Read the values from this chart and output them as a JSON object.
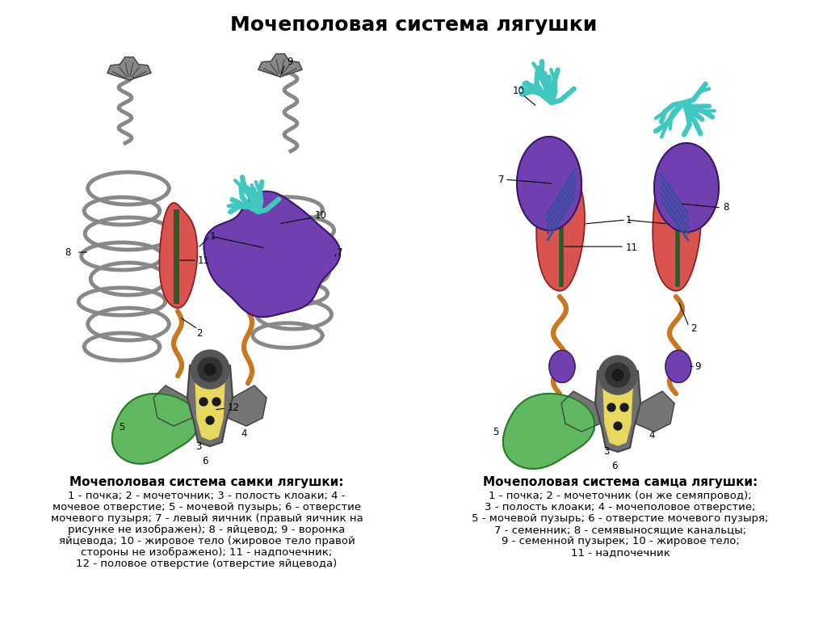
{
  "title": "Мочеполовая система лягушки",
  "title_fontsize": 18,
  "title_fontweight": "bold",
  "background_color": "#ffffff",
  "left_subtitle": "Мочеполовая система самки лягушки:",
  "right_subtitle": "Мочеполовая система самца лягушки:",
  "subtitle_fontsize": 11,
  "subtitle_fontweight": "bold",
  "left_legend_lines": [
    "1 - почка; 2 - мочеточник; 3 - полость клоаки; 4 -",
    "мочевое отверстие; 5 - мочевой пузырь; 6 - отверстие",
    "мочевого пузыря; 7 - левый яичник (правый яичник на",
    "рисунке не изображен); 8 - яйцевод; 9 - воронка",
    "яйцевода; 10 - жировое тело (жировое тело правой",
    "стороны не изображено); 11 - надпочечник;",
    "12 - половое отверстие (отверстие яйцевода)"
  ],
  "right_legend_lines": [
    "1 - почка; 2 - мочеточник (он же семяпровод);",
    "3 - полость клоаки; 4 - мочеполовое отверстие;",
    "5 - мочевой пузырь; 6 - отверстие мочевого пузыря;",
    "7 - семенник; 8 - семявыносящие канальцы;",
    "9 - семенной пузырек; 10 - жировое тело;",
    "11 - надпочечник"
  ],
  "legend_fontsize": 9.5,
  "gray": "#909090",
  "dark_gray": "#555555",
  "pink_kidney": "#d9534f",
  "dark_kidney": "#8b2020",
  "purple_ovary": "#7040b0",
  "cyan_fat": "#40c8c0",
  "green_bladder": "#60b860",
  "orange_ureter": "#c87820",
  "yellow_cloaca": "#e8d860",
  "adrenal_color": "#2a5a2a"
}
